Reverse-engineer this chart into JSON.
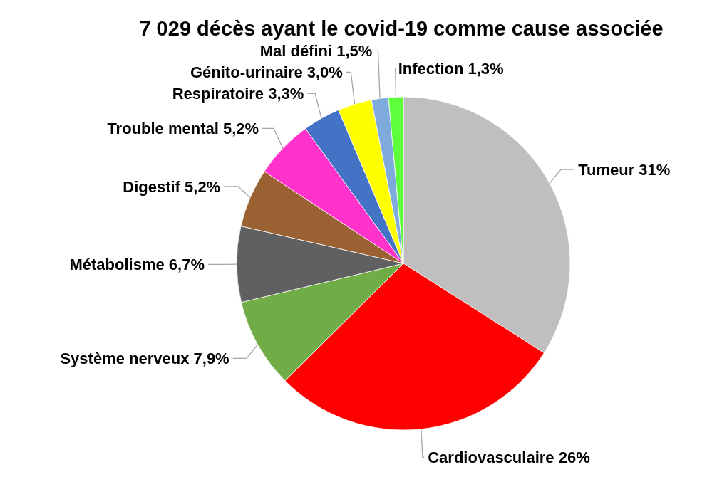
{
  "chart_data": {
    "type": "pie",
    "title": "7 029 décès ayant le covid-19 comme cause associée",
    "categories": [
      "Tumeur",
      "Cardiovasculaire",
      "Système nerveux",
      "Métabolisme",
      "Digestif",
      "Trouble mental",
      "Respiratoire",
      "Génito-urinaire",
      "Mal défini",
      "Infection"
    ],
    "values": [
      31,
      26,
      7.9,
      6.7,
      5.2,
      5.2,
      3.3,
      3.0,
      1.5,
      1.3
    ],
    "value_labels": [
      "31%",
      "26%",
      "7,9%",
      "6,7%",
      "5,2%",
      "5,2%",
      "3,3%",
      "3,0%",
      "1,5%",
      "1,3%"
    ],
    "colors": [
      "#bfbfbf",
      "#ff0000",
      "#70ad47",
      "#606060",
      "#9a6233",
      "#ff33cc",
      "#4472c4",
      "#ffff00",
      "#7eaadc",
      "#5cff3a"
    ]
  }
}
